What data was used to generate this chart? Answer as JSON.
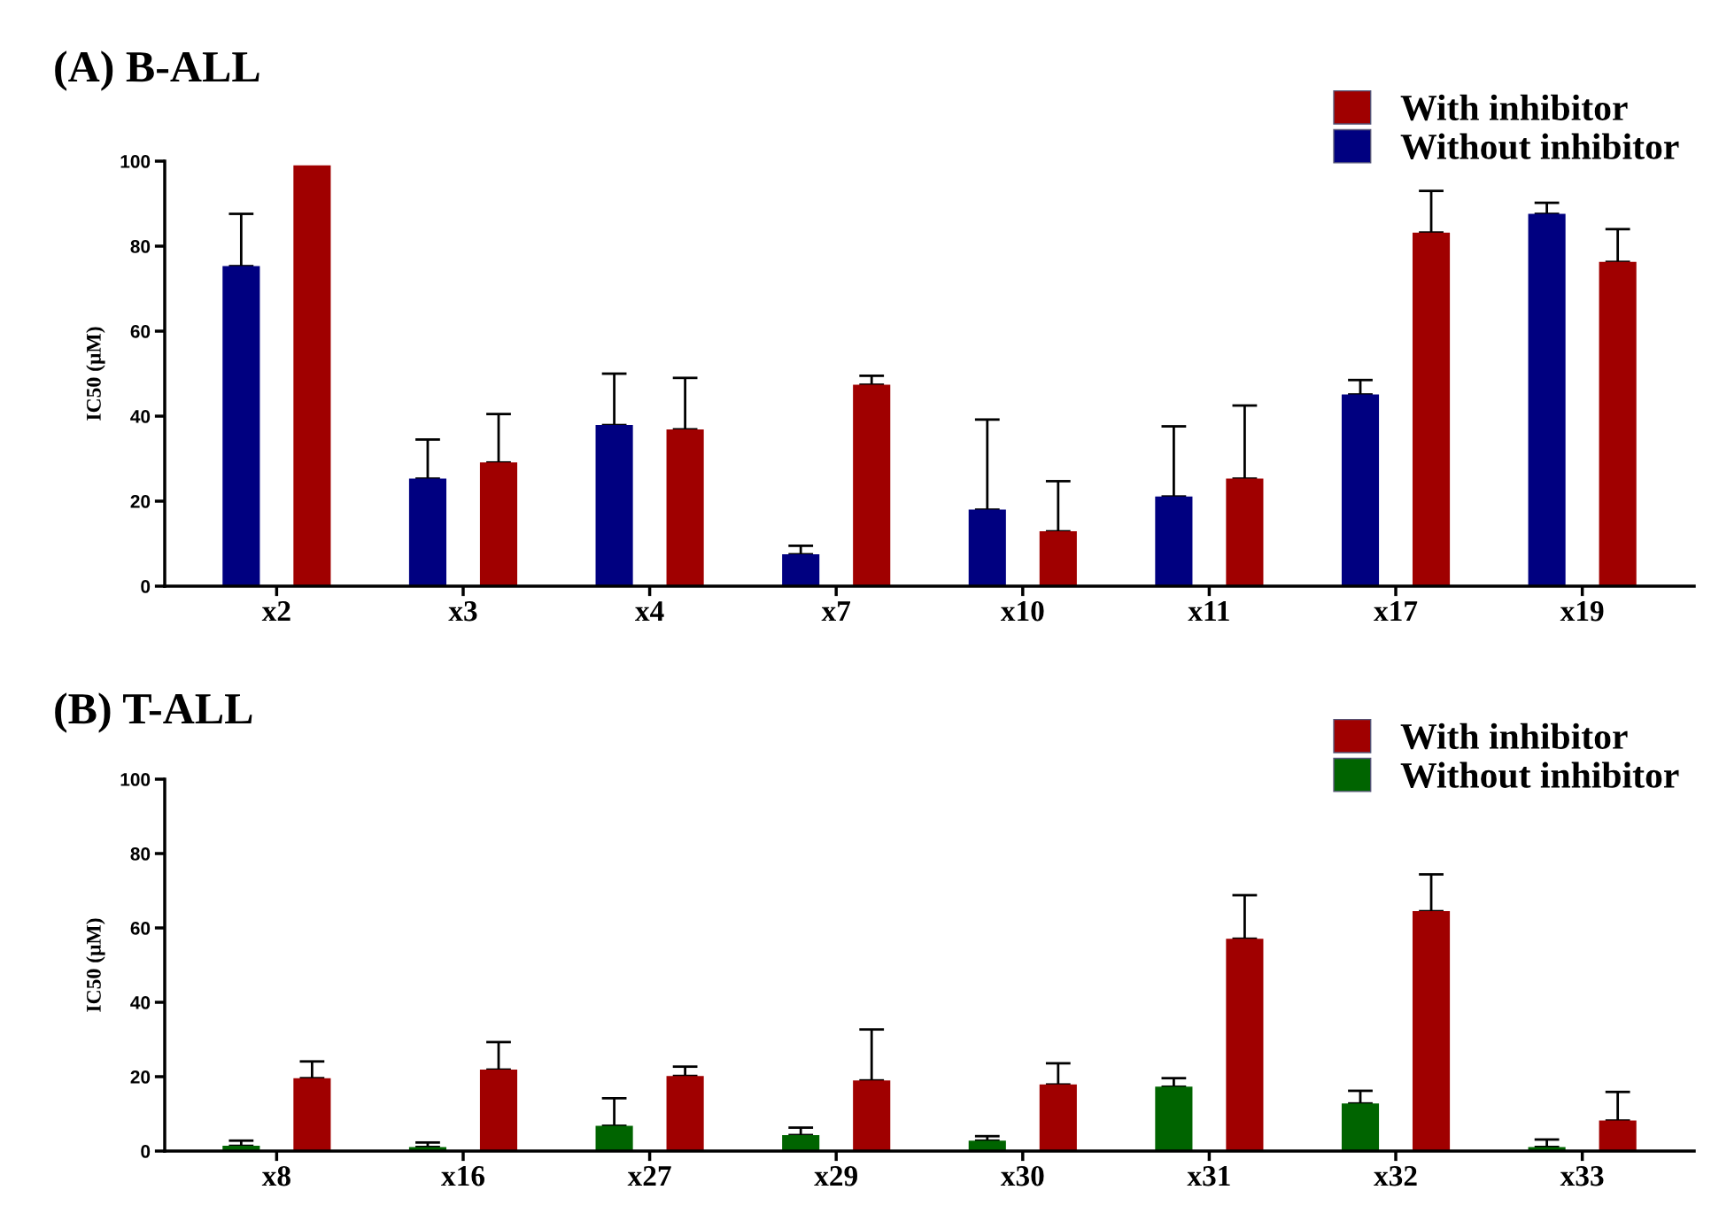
{
  "chart_data": [
    {
      "type": "bar",
      "title": "(A) B-ALL",
      "ylabel": "IC50 (μM)",
      "categories": [
        "x2",
        "x3",
        "x4",
        "x7",
        "x10",
        "x11",
        "x17",
        "x19"
      ],
      "ylim": [
        0,
        100
      ],
      "yticks": [
        0,
        20,
        40,
        60,
        80,
        100
      ],
      "legend": "top right",
      "grid": false,
      "series": [
        {
          "name": "Without inhibitor",
          "color": "#000080",
          "values": [
            75.3,
            25.3,
            37.9,
            7.5,
            18,
            21.1,
            45.1,
            87.6
          ],
          "errors": [
            [
              75.3,
              87.6
            ],
            [
              25.3,
              34.5
            ],
            [
              37.9,
              50
            ],
            [
              7.5,
              9.5
            ],
            [
              18,
              39.2
            ],
            [
              21.1,
              37.6
            ],
            [
              45.1,
              48.5
            ],
            [
              87.6,
              90.2
            ]
          ]
        },
        {
          "name": "With inhibitor",
          "color": "#a00000",
          "values": [
            99,
            29.1,
            36.9,
            47.4,
            12.9,
            25.3,
            83.2,
            76.3
          ],
          "errors": [
            null,
            [
              29.1,
              40.5
            ],
            [
              36.9,
              49
            ],
            [
              47.4,
              49.5
            ],
            [
              12.9,
              24.7
            ],
            [
              25.3,
              42.5
            ],
            [
              83.2,
              93
            ],
            [
              76.3,
              84
            ]
          ]
        }
      ]
    },
    {
      "type": "bar",
      "title": "(B) T-ALL",
      "ylabel": "IC50 (μM)",
      "categories": [
        "x8",
        "x16",
        "x27",
        "x29",
        "x30",
        "x31",
        "x32",
        "x33"
      ],
      "ylim": [
        0,
        100
      ],
      "yticks": [
        0,
        20,
        40,
        60,
        80,
        100
      ],
      "legend": "top right",
      "grid": false,
      "series": [
        {
          "name": "Without inhibitor",
          "color": "#006400",
          "values": [
            1.4,
            1.1,
            6.8,
            4.3,
            2.8,
            17.3,
            12.8,
            1.1
          ],
          "errors": [
            [
              1.4,
              2.8
            ],
            [
              1.1,
              2.3
            ],
            [
              6.8,
              14.2
            ],
            [
              4.3,
              6.3
            ],
            [
              2.8,
              4
            ],
            [
              17.3,
              19.6
            ],
            [
              12.8,
              16.2
            ],
            [
              1.1,
              3.1
            ]
          ]
        },
        {
          "name": "With inhibitor",
          "color": "#a00000",
          "values": [
            19.6,
            21.9,
            20.2,
            19,
            17.9,
            57.1,
            64.5,
            8.2
          ],
          "errors": [
            [
              19.6,
              24.1
            ],
            [
              21.9,
              29.3
            ],
            [
              20.2,
              22.7
            ],
            [
              19,
              32.7
            ],
            [
              17.9,
              23.6
            ],
            [
              57.1,
              68.8
            ],
            [
              64.5,
              74.4
            ],
            [
              8.2,
              15.9
            ]
          ]
        }
      ]
    }
  ]
}
